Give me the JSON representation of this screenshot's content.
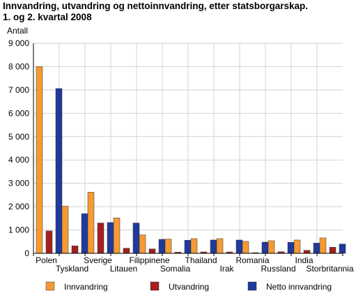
{
  "chart_data": {
    "type": "bar",
    "title_lines": [
      "Innvandring, utvandring og nettoinnvandring, etter statsborgarskap.",
      "1. og 2. kvartal 2008"
    ],
    "ylabel": "Antall",
    "xlabel": "",
    "ylim": [
      0,
      9000
    ],
    "yticks": [
      {
        "value": 0,
        "label": "0"
      },
      {
        "value": 1000,
        "label": "1 000"
      },
      {
        "value": 2000,
        "label": "2 000"
      },
      {
        "value": 3000,
        "label": "3 000"
      },
      {
        "value": 4000,
        "label": "4 000"
      },
      {
        "value": 5000,
        "label": "5 000"
      },
      {
        "value": 6000,
        "label": "6 000"
      },
      {
        "value": 7000,
        "label": "7 000"
      },
      {
        "value": 8000,
        "label": "8 000"
      },
      {
        "value": 9000,
        "label": "9 000"
      }
    ],
    "grid": true,
    "legend_position": "bottom",
    "categories": [
      "Polen",
      "Tyskland",
      "Sverige",
      "Litauen",
      "Filippinene",
      "Somalia",
      "Thailand",
      "Irak",
      "Romania",
      "Russland",
      "India",
      "Storbritannia"
    ],
    "series": [
      {
        "name": "Innvandring",
        "color": "#f59a34",
        "values": [
          8000,
          2020,
          2620,
          1520,
          790,
          610,
          630,
          630,
          510,
          540,
          570,
          660
        ]
      },
      {
        "name": "Utvandring",
        "color": "#a51f1f",
        "values": [
          960,
          320,
          1300,
          220,
          190,
          50,
          60,
          60,
          30,
          70,
          130,
          260
        ]
      },
      {
        "name": "Netto innvandring",
        "color": "#1f3a9a",
        "values": [
          7060,
          1700,
          1320,
          1300,
          600,
          560,
          570,
          570,
          480,
          470,
          440,
          400
        ]
      }
    ]
  }
}
